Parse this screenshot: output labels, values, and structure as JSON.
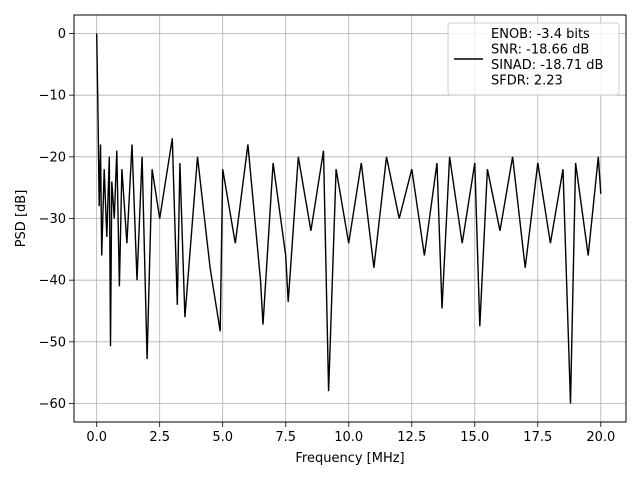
{
  "chart_data": {
    "type": "line",
    "title": "",
    "xlabel": "Frequency [MHz]",
    "ylabel": "PSD [dB]",
    "xlim": [
      -0.9,
      21.0
    ],
    "ylim": [
      -63.0,
      3.0
    ],
    "xticks": [
      0.0,
      2.5,
      5.0,
      7.5,
      10.0,
      12.5,
      15.0,
      17.5,
      20.0
    ],
    "xtick_labels": [
      "0.0",
      "2.5",
      "5.0",
      "7.5",
      "10.0",
      "12.5",
      "15.0",
      "17.5",
      "20.0"
    ],
    "yticks": [
      0,
      -10,
      -20,
      -30,
      -40,
      -50,
      -60
    ],
    "ytick_labels": [
      "0",
      "−10",
      "−20",
      "−30",
      "−40",
      "−50",
      "−60"
    ],
    "grid": true,
    "legend_position": "top-right",
    "line_color": "#000000",
    "legend": [
      "ENOB: -3.4 bits",
      "SNR: -18.66 dB",
      "SINAD: -18.71 dB",
      "SFDR: 2.23"
    ],
    "series": [
      {
        "x": [
          0.0,
          0.05,
          0.1,
          0.15,
          0.2,
          0.3,
          0.4,
          0.5,
          0.55,
          0.6,
          0.7,
          0.8,
          0.9,
          1.0,
          1.2,
          1.4,
          1.6,
          1.8,
          2.0,
          2.2,
          2.5,
          3.0,
          3.2,
          3.3,
          3.5,
          4.0,
          4.5,
          4.9,
          5.0,
          5.5,
          6.0,
          6.5,
          6.6,
          7.0,
          7.5,
          7.6,
          8.0,
          8.5,
          9.0,
          9.2,
          9.5,
          10.0,
          10.5,
          11.0,
          11.5,
          12.0,
          12.5,
          13.0,
          13.5,
          13.7,
          14.0,
          14.5,
          15.0,
          15.2,
          15.5,
          16.0,
          16.5,
          17.0,
          17.5,
          18.0,
          18.5,
          18.8,
          19.0,
          19.5,
          19.9,
          20.0
        ],
        "y": [
          0.0,
          -12.0,
          -28.0,
          -18.0,
          -36.0,
          -22.0,
          -33.0,
          -20.0,
          -50.7,
          -24.0,
          -30.0,
          -19.0,
          -41.0,
          -22.0,
          -34.0,
          -18.0,
          -40.0,
          -20.0,
          -52.8,
          -22.0,
          -30.0,
          -17.0,
          -44.0,
          -21.0,
          -46.0,
          -20.0,
          -38.0,
          -48.3,
          -22.0,
          -34.0,
          -18.0,
          -40.0,
          -47.2,
          -21.0,
          -36.0,
          -43.5,
          -20.0,
          -32.0,
          -19.0,
          -58.0,
          -22.0,
          -34.0,
          -21.0,
          -38.0,
          -20.0,
          -30.0,
          -22.0,
          -36.0,
          -21.0,
          -44.6,
          -20.0,
          -34.0,
          -21.0,
          -47.5,
          -22.0,
          -32.0,
          -20.0,
          -38.0,
          -21.0,
          -34.0,
          -22.0,
          -60.0,
          -21.0,
          -36.0,
          -20.0,
          -26.0
        ]
      }
    ]
  }
}
